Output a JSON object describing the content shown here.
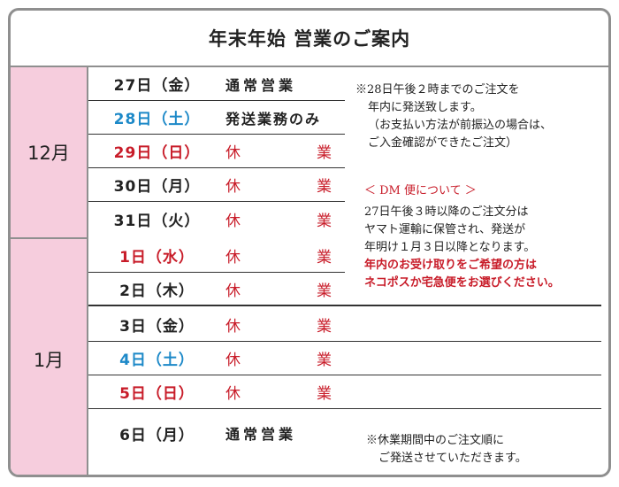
{
  "title": "年末年始 営業のご案内",
  "months": {
    "dec": "12月",
    "jan": "1月"
  },
  "rows": [
    {
      "date": "27日（金）",
      "status": "通常営業"
    },
    {
      "date": "28日（土）",
      "status": "発送業務のみ"
    },
    {
      "date": "29日（日）",
      "status_a": "休",
      "status_b": "業"
    },
    {
      "date": "30日（月）",
      "status_a": "休",
      "status_b": "業"
    },
    {
      "date": "31日（火）",
      "status_a": "休",
      "status_b": "業"
    },
    {
      "date": "1日（水）",
      "status_a": "休",
      "status_b": "業"
    },
    {
      "date": "2日（木）",
      "status_a": "休",
      "status_b": "業"
    },
    {
      "date": "3日（金）",
      "status_a": "休",
      "status_b": "業"
    },
    {
      "date": "4日（土）",
      "status_a": "休",
      "status_b": "業"
    },
    {
      "date": "5日（日）",
      "status_a": "休",
      "status_b": "業"
    },
    {
      "date": "6日（月）",
      "status": "通常営業"
    }
  ],
  "notes": {
    "order_line1": "※28日午後２時までのご注文を",
    "order_line2": "年内に発送致します。",
    "order_line3": "（お支払い方法が前振込の場合は、",
    "order_line4": "ご入金確認ができたご注文）",
    "dm_heading": "＜ DM 便について ＞",
    "dm_line1": "27日午後３時以降のご注文分は",
    "dm_line2": "ヤマト運輸に保管され、発送が",
    "dm_line3": "年明け１月３日以降となります。",
    "dm_line4": "年内のお受け取りをご希望の方は",
    "dm_line5": "ネコポスか宅急便をお選びください。",
    "closing_line1": "※休業期間中のご注文順に",
    "closing_line2": "ご発送させていただきます。"
  },
  "colors": {
    "pink": "#f6cddd",
    "red": "#c81c29",
    "blue": "#1d89c8",
    "border": "#8f8f8f"
  }
}
